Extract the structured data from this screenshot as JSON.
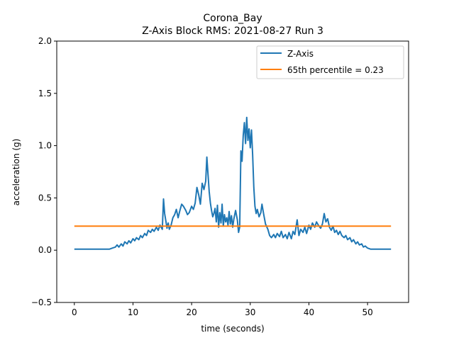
{
  "chart_data": {
    "type": "line",
    "title": "Corona_Bay",
    "subtitle": "Z-Axis Block RMS: 2021-08-27 Run 3",
    "xlabel": "time (seconds)",
    "ylabel": "acceleration (g)",
    "xlim": [
      -3,
      57
    ],
    "ylim": [
      -0.5,
      2.0
    ],
    "xticks": [
      0,
      10,
      20,
      30,
      40,
      50
    ],
    "xtick_labels": [
      "0",
      "10",
      "20",
      "30",
      "40",
      "50"
    ],
    "yticks": [
      -0.5,
      0.0,
      0.5,
      1.0,
      1.5,
      2.0
    ],
    "ytick_labels": [
      "−0.5",
      "0.0",
      "0.5",
      "1.0",
      "1.5",
      "2.0"
    ],
    "grid": false,
    "legend_position": "top-right",
    "series": [
      {
        "name": "Z-Axis",
        "color": "#1f77b4",
        "points": [
          [
            0,
            0.01
          ],
          [
            2,
            0.01
          ],
          [
            4,
            0.01
          ],
          [
            6,
            0.01
          ],
          [
            6.5,
            0.02
          ],
          [
            7,
            0.03
          ],
          [
            7.3,
            0.05
          ],
          [
            7.6,
            0.03
          ],
          [
            8,
            0.06
          ],
          [
            8.3,
            0.04
          ],
          [
            8.6,
            0.08
          ],
          [
            9,
            0.06
          ],
          [
            9.3,
            0.09
          ],
          [
            9.6,
            0.07
          ],
          [
            10,
            0.11
          ],
          [
            10.3,
            0.09
          ],
          [
            10.6,
            0.12
          ],
          [
            11,
            0.1
          ],
          [
            11.3,
            0.14
          ],
          [
            11.6,
            0.12
          ],
          [
            12,
            0.16
          ],
          [
            12.3,
            0.14
          ],
          [
            12.6,
            0.19
          ],
          [
            13,
            0.17
          ],
          [
            13.3,
            0.2
          ],
          [
            13.6,
            0.18
          ],
          [
            14,
            0.22
          ],
          [
            14.3,
            0.19
          ],
          [
            14.6,
            0.24
          ],
          [
            15,
            0.2
          ],
          [
            15.2,
            0.49
          ],
          [
            15.4,
            0.35
          ],
          [
            15.6,
            0.28
          ],
          [
            15.8,
            0.21
          ],
          [
            16,
            0.26
          ],
          [
            16.2,
            0.2
          ],
          [
            16.5,
            0.24
          ],
          [
            16.8,
            0.31
          ],
          [
            17.1,
            0.34
          ],
          [
            17.4,
            0.39
          ],
          [
            17.7,
            0.31
          ],
          [
            18,
            0.38
          ],
          [
            18.3,
            0.44
          ],
          [
            18.6,
            0.42
          ],
          [
            19,
            0.38
          ],
          [
            19.3,
            0.34
          ],
          [
            19.6,
            0.36
          ],
          [
            20,
            0.42
          ],
          [
            20.3,
            0.39
          ],
          [
            20.6,
            0.45
          ],
          [
            20.9,
            0.6
          ],
          [
            21.2,
            0.53
          ],
          [
            21.5,
            0.44
          ],
          [
            21.8,
            0.64
          ],
          [
            22.1,
            0.58
          ],
          [
            22.4,
            0.66
          ],
          [
            22.6,
            0.89
          ],
          [
            22.8,
            0.72
          ],
          [
            23,
            0.56
          ],
          [
            23.2,
            0.45
          ],
          [
            23.4,
            0.38
          ],
          [
            23.6,
            0.32
          ],
          [
            23.8,
            0.35
          ],
          [
            24,
            0.4
          ],
          [
            24.2,
            0.27
          ],
          [
            24.4,
            0.43
          ],
          [
            24.6,
            0.22
          ],
          [
            24.8,
            0.36
          ],
          [
            25,
            0.26
          ],
          [
            25.2,
            0.44
          ],
          [
            25.4,
            0.23
          ],
          [
            25.6,
            0.34
          ],
          [
            25.8,
            0.27
          ],
          [
            26,
            0.31
          ],
          [
            26.2,
            0.24
          ],
          [
            26.4,
            0.37
          ],
          [
            26.6,
            0.25
          ],
          [
            26.8,
            0.33
          ],
          [
            27,
            0.22
          ],
          [
            27.2,
            0.3
          ],
          [
            27.5,
            0.38
          ],
          [
            27.8,
            0.29
          ],
          [
            28,
            0.17
          ],
          [
            28.2,
            0.22
          ],
          [
            28.4,
            0.95
          ],
          [
            28.6,
            0.85
          ],
          [
            28.8,
            1.1
          ],
          [
            29,
            1.22
          ],
          [
            29.2,
            1.02
          ],
          [
            29.4,
            1.27
          ],
          [
            29.6,
            1.05
          ],
          [
            29.8,
            1.16
          ],
          [
            30,
            0.98
          ],
          [
            30.2,
            1.15
          ],
          [
            30.4,
            0.92
          ],
          [
            30.6,
            0.6
          ],
          [
            30.8,
            0.42
          ],
          [
            31,
            0.35
          ],
          [
            31.2,
            0.39
          ],
          [
            31.5,
            0.32
          ],
          [
            31.8,
            0.36
          ],
          [
            32,
            0.44
          ],
          [
            32.3,
            0.34
          ],
          [
            32.6,
            0.25
          ],
          [
            33,
            0.2
          ],
          [
            33.3,
            0.14
          ],
          [
            33.6,
            0.12
          ],
          [
            34,
            0.15
          ],
          [
            34.3,
            0.12
          ],
          [
            34.6,
            0.16
          ],
          [
            35,
            0.13
          ],
          [
            35.3,
            0.18
          ],
          [
            35.6,
            0.12
          ],
          [
            36,
            0.15
          ],
          [
            36.3,
            0.11
          ],
          [
            36.6,
            0.17
          ],
          [
            37,
            0.11
          ],
          [
            37.3,
            0.18
          ],
          [
            37.6,
            0.15
          ],
          [
            38,
            0.29
          ],
          [
            38.3,
            0.14
          ],
          [
            38.6,
            0.2
          ],
          [
            39,
            0.17
          ],
          [
            39.3,
            0.22
          ],
          [
            39.6,
            0.16
          ],
          [
            40,
            0.24
          ],
          [
            40.3,
            0.2
          ],
          [
            40.6,
            0.26
          ],
          [
            41,
            0.22
          ],
          [
            41.3,
            0.27
          ],
          [
            41.6,
            0.24
          ],
          [
            42,
            0.21
          ],
          [
            42.3,
            0.25
          ],
          [
            42.6,
            0.35
          ],
          [
            42.9,
            0.27
          ],
          [
            43.2,
            0.3
          ],
          [
            43.5,
            0.22
          ],
          [
            43.8,
            0.19
          ],
          [
            44.1,
            0.23
          ],
          [
            44.4,
            0.17
          ],
          [
            44.7,
            0.19
          ],
          [
            45,
            0.15
          ],
          [
            45.3,
            0.18
          ],
          [
            45.6,
            0.14
          ],
          [
            46,
            0.12
          ],
          [
            46.3,
            0.14
          ],
          [
            46.6,
            0.1
          ],
          [
            47,
            0.12
          ],
          [
            47.3,
            0.08
          ],
          [
            47.6,
            0.1
          ],
          [
            48,
            0.06
          ],
          [
            48.3,
            0.08
          ],
          [
            48.6,
            0.05
          ],
          [
            49,
            0.06
          ],
          [
            49.3,
            0.03
          ],
          [
            49.6,
            0.04
          ],
          [
            50,
            0.02
          ],
          [
            50.5,
            0.01
          ],
          [
            52,
            0.01
          ],
          [
            54,
            0.01
          ]
        ]
      },
      {
        "name": "65th percentile = 0.23",
        "color": "#ff7f0e",
        "points": [
          [
            0,
            0.23
          ],
          [
            54,
            0.23
          ]
        ]
      }
    ]
  }
}
